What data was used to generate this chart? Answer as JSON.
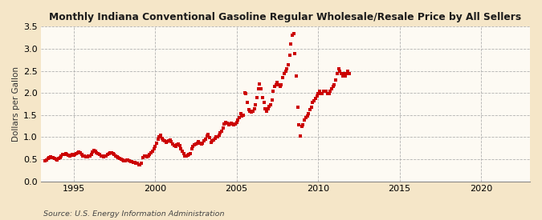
{
  "title": "Monthly Indiana Conventional Gasoline Regular Wholesale/Resale Price by All Sellers",
  "ylabel": "Dollars per Gallon",
  "source": "Source: U.S. Energy Information Administration",
  "fig_bg_color": "#F5E6C8",
  "plot_bg_color": "#FDFAF3",
  "marker_color": "#CC0000",
  "marker_size": 2.8,
  "xlim": [
    1993.0,
    2023.0
  ],
  "ylim": [
    0.0,
    3.5
  ],
  "xticks": [
    1995,
    2000,
    2005,
    2010,
    2015,
    2020
  ],
  "yticks": [
    0.0,
    0.5,
    1.0,
    1.5,
    2.0,
    2.5,
    3.0,
    3.5
  ],
  "data": [
    [
      1993.25,
      0.47
    ],
    [
      1993.33,
      0.49
    ],
    [
      1993.42,
      0.52
    ],
    [
      1993.5,
      0.54
    ],
    [
      1993.58,
      0.56
    ],
    [
      1993.67,
      0.54
    ],
    [
      1993.75,
      0.53
    ],
    [
      1993.83,
      0.52
    ],
    [
      1993.92,
      0.5
    ],
    [
      1994.0,
      0.49
    ],
    [
      1994.08,
      0.51
    ],
    [
      1994.17,
      0.54
    ],
    [
      1994.25,
      0.57
    ],
    [
      1994.33,
      0.6
    ],
    [
      1994.42,
      0.61
    ],
    [
      1994.5,
      0.62
    ],
    [
      1994.58,
      0.61
    ],
    [
      1994.67,
      0.59
    ],
    [
      1994.75,
      0.58
    ],
    [
      1994.83,
      0.59
    ],
    [
      1994.92,
      0.61
    ],
    [
      1995.0,
      0.59
    ],
    [
      1995.08,
      0.61
    ],
    [
      1995.17,
      0.62
    ],
    [
      1995.25,
      0.64
    ],
    [
      1995.33,
      0.66
    ],
    [
      1995.42,
      0.65
    ],
    [
      1995.5,
      0.6
    ],
    [
      1995.58,
      0.58
    ],
    [
      1995.67,
      0.57
    ],
    [
      1995.75,
      0.56
    ],
    [
      1995.83,
      0.56
    ],
    [
      1995.92,
      0.57
    ],
    [
      1996.0,
      0.58
    ],
    [
      1996.08,
      0.61
    ],
    [
      1996.17,
      0.67
    ],
    [
      1996.25,
      0.7
    ],
    [
      1996.33,
      0.68
    ],
    [
      1996.42,
      0.65
    ],
    [
      1996.5,
      0.63
    ],
    [
      1996.58,
      0.61
    ],
    [
      1996.67,
      0.58
    ],
    [
      1996.75,
      0.57
    ],
    [
      1996.83,
      0.56
    ],
    [
      1996.92,
      0.57
    ],
    [
      1997.0,
      0.58
    ],
    [
      1997.08,
      0.6
    ],
    [
      1997.17,
      0.62
    ],
    [
      1997.25,
      0.64
    ],
    [
      1997.33,
      0.65
    ],
    [
      1997.42,
      0.63
    ],
    [
      1997.5,
      0.6
    ],
    [
      1997.58,
      0.57
    ],
    [
      1997.67,
      0.55
    ],
    [
      1997.75,
      0.53
    ],
    [
      1997.83,
      0.51
    ],
    [
      1997.92,
      0.5
    ],
    [
      1998.0,
      0.48
    ],
    [
      1998.08,
      0.47
    ],
    [
      1998.17,
      0.46
    ],
    [
      1998.25,
      0.48
    ],
    [
      1998.33,
      0.49
    ],
    [
      1998.42,
      0.47
    ],
    [
      1998.5,
      0.45
    ],
    [
      1998.58,
      0.44
    ],
    [
      1998.67,
      0.43
    ],
    [
      1998.75,
      0.42
    ],
    [
      1998.83,
      0.41
    ],
    [
      1998.92,
      0.4
    ],
    [
      1999.0,
      0.38
    ],
    [
      1999.08,
      0.37
    ],
    [
      1999.17,
      0.4
    ],
    [
      1999.25,
      0.53
    ],
    [
      1999.33,
      0.58
    ],
    [
      1999.42,
      0.57
    ],
    [
      1999.5,
      0.55
    ],
    [
      1999.58,
      0.57
    ],
    [
      1999.67,
      0.61
    ],
    [
      1999.75,
      0.64
    ],
    [
      1999.83,
      0.68
    ],
    [
      1999.92,
      0.73
    ],
    [
      2000.0,
      0.79
    ],
    [
      2000.08,
      0.87
    ],
    [
      2000.17,
      0.95
    ],
    [
      2000.25,
      1.0
    ],
    [
      2000.33,
      1.04
    ],
    [
      2000.42,
      0.97
    ],
    [
      2000.5,
      0.94
    ],
    [
      2000.58,
      0.91
    ],
    [
      2000.67,
      0.88
    ],
    [
      2000.75,
      0.9
    ],
    [
      2000.83,
      0.92
    ],
    [
      2000.92,
      0.94
    ],
    [
      2001.0,
      0.89
    ],
    [
      2001.08,
      0.84
    ],
    [
      2001.17,
      0.8
    ],
    [
      2001.25,
      0.79
    ],
    [
      2001.33,
      0.82
    ],
    [
      2001.42,
      0.84
    ],
    [
      2001.5,
      0.8
    ],
    [
      2001.58,
      0.74
    ],
    [
      2001.67,
      0.68
    ],
    [
      2001.75,
      0.62
    ],
    [
      2001.83,
      0.58
    ],
    [
      2001.92,
      0.57
    ],
    [
      2002.0,
      0.59
    ],
    [
      2002.08,
      0.61
    ],
    [
      2002.17,
      0.63
    ],
    [
      2002.25,
      0.73
    ],
    [
      2002.33,
      0.79
    ],
    [
      2002.42,
      0.82
    ],
    [
      2002.5,
      0.85
    ],
    [
      2002.58,
      0.87
    ],
    [
      2002.67,
      0.89
    ],
    [
      2002.75,
      0.87
    ],
    [
      2002.83,
      0.84
    ],
    [
      2002.92,
      0.87
    ],
    [
      2003.0,
      0.92
    ],
    [
      2003.08,
      0.96
    ],
    [
      2003.17,
      1.02
    ],
    [
      2003.25,
      1.06
    ],
    [
      2003.33,
      0.99
    ],
    [
      2003.42,
      0.88
    ],
    [
      2003.5,
      0.91
    ],
    [
      2003.58,
      0.94
    ],
    [
      2003.67,
      0.97
    ],
    [
      2003.75,
      1.0
    ],
    [
      2003.83,
      1.01
    ],
    [
      2003.92,
      1.04
    ],
    [
      2004.0,
      1.09
    ],
    [
      2004.08,
      1.14
    ],
    [
      2004.17,
      1.2
    ],
    [
      2004.25,
      1.29
    ],
    [
      2004.33,
      1.34
    ],
    [
      2004.42,
      1.31
    ],
    [
      2004.5,
      1.27
    ],
    [
      2004.58,
      1.29
    ],
    [
      2004.67,
      1.31
    ],
    [
      2004.75,
      1.29
    ],
    [
      2004.83,
      1.27
    ],
    [
      2004.92,
      1.29
    ],
    [
      2005.0,
      1.34
    ],
    [
      2005.08,
      1.39
    ],
    [
      2005.17,
      1.44
    ],
    [
      2005.25,
      1.54
    ],
    [
      2005.33,
      1.48
    ],
    [
      2005.42,
      1.49
    ],
    [
      2005.5,
      2.0
    ],
    [
      2005.58,
      1.99
    ],
    [
      2005.67,
      1.78
    ],
    [
      2005.75,
      1.63
    ],
    [
      2005.83,
      1.59
    ],
    [
      2005.92,
      1.57
    ],
    [
      2006.0,
      1.59
    ],
    [
      2006.08,
      1.64
    ],
    [
      2006.17,
      1.74
    ],
    [
      2006.25,
      1.9
    ],
    [
      2006.33,
      2.1
    ],
    [
      2006.42,
      2.2
    ],
    [
      2006.5,
      2.09
    ],
    [
      2006.58,
      1.89
    ],
    [
      2006.67,
      1.79
    ],
    [
      2006.75,
      1.64
    ],
    [
      2006.83,
      1.59
    ],
    [
      2006.92,
      1.64
    ],
    [
      2007.0,
      1.69
    ],
    [
      2007.08,
      1.74
    ],
    [
      2007.17,
      1.84
    ],
    [
      2007.25,
      2.04
    ],
    [
      2007.33,
      2.14
    ],
    [
      2007.42,
      2.19
    ],
    [
      2007.5,
      2.24
    ],
    [
      2007.58,
      2.19
    ],
    [
      2007.67,
      2.14
    ],
    [
      2007.75,
      2.19
    ],
    [
      2007.83,
      2.34
    ],
    [
      2007.92,
      2.44
    ],
    [
      2008.0,
      2.49
    ],
    [
      2008.08,
      2.54
    ],
    [
      2008.17,
      2.64
    ],
    [
      2008.25,
      2.85
    ],
    [
      2008.33,
      3.1
    ],
    [
      2008.42,
      3.3
    ],
    [
      2008.5,
      3.34
    ],
    [
      2008.58,
      2.89
    ],
    [
      2008.67,
      2.38
    ],
    [
      2008.75,
      1.68
    ],
    [
      2008.83,
      1.28
    ],
    [
      2008.92,
      1.03
    ],
    [
      2009.0,
      1.24
    ],
    [
      2009.08,
      1.28
    ],
    [
      2009.17,
      1.38
    ],
    [
      2009.25,
      1.44
    ],
    [
      2009.33,
      1.48
    ],
    [
      2009.42,
      1.54
    ],
    [
      2009.5,
      1.63
    ],
    [
      2009.58,
      1.68
    ],
    [
      2009.67,
      1.78
    ],
    [
      2009.75,
      1.83
    ],
    [
      2009.83,
      1.88
    ],
    [
      2009.92,
      1.93
    ],
    [
      2010.0,
      1.98
    ],
    [
      2010.08,
      2.04
    ],
    [
      2010.17,
      1.99
    ],
    [
      2010.25,
      1.99
    ],
    [
      2010.33,
      2.04
    ],
    [
      2010.42,
      2.04
    ],
    [
      2010.5,
      2.04
    ],
    [
      2010.58,
      1.99
    ],
    [
      2010.67,
      1.99
    ],
    [
      2010.75,
      2.04
    ],
    [
      2010.83,
      2.09
    ],
    [
      2010.92,
      2.14
    ],
    [
      2011.0,
      2.19
    ],
    [
      2011.08,
      2.29
    ],
    [
      2011.17,
      2.44
    ],
    [
      2011.25,
      2.54
    ],
    [
      2011.33,
      2.49
    ],
    [
      2011.42,
      2.44
    ],
    [
      2011.5,
      2.39
    ],
    [
      2011.58,
      2.44
    ],
    [
      2011.67,
      2.39
    ],
    [
      2011.75,
      2.44
    ],
    [
      2011.83,
      2.49
    ],
    [
      2011.92,
      2.44
    ]
  ]
}
